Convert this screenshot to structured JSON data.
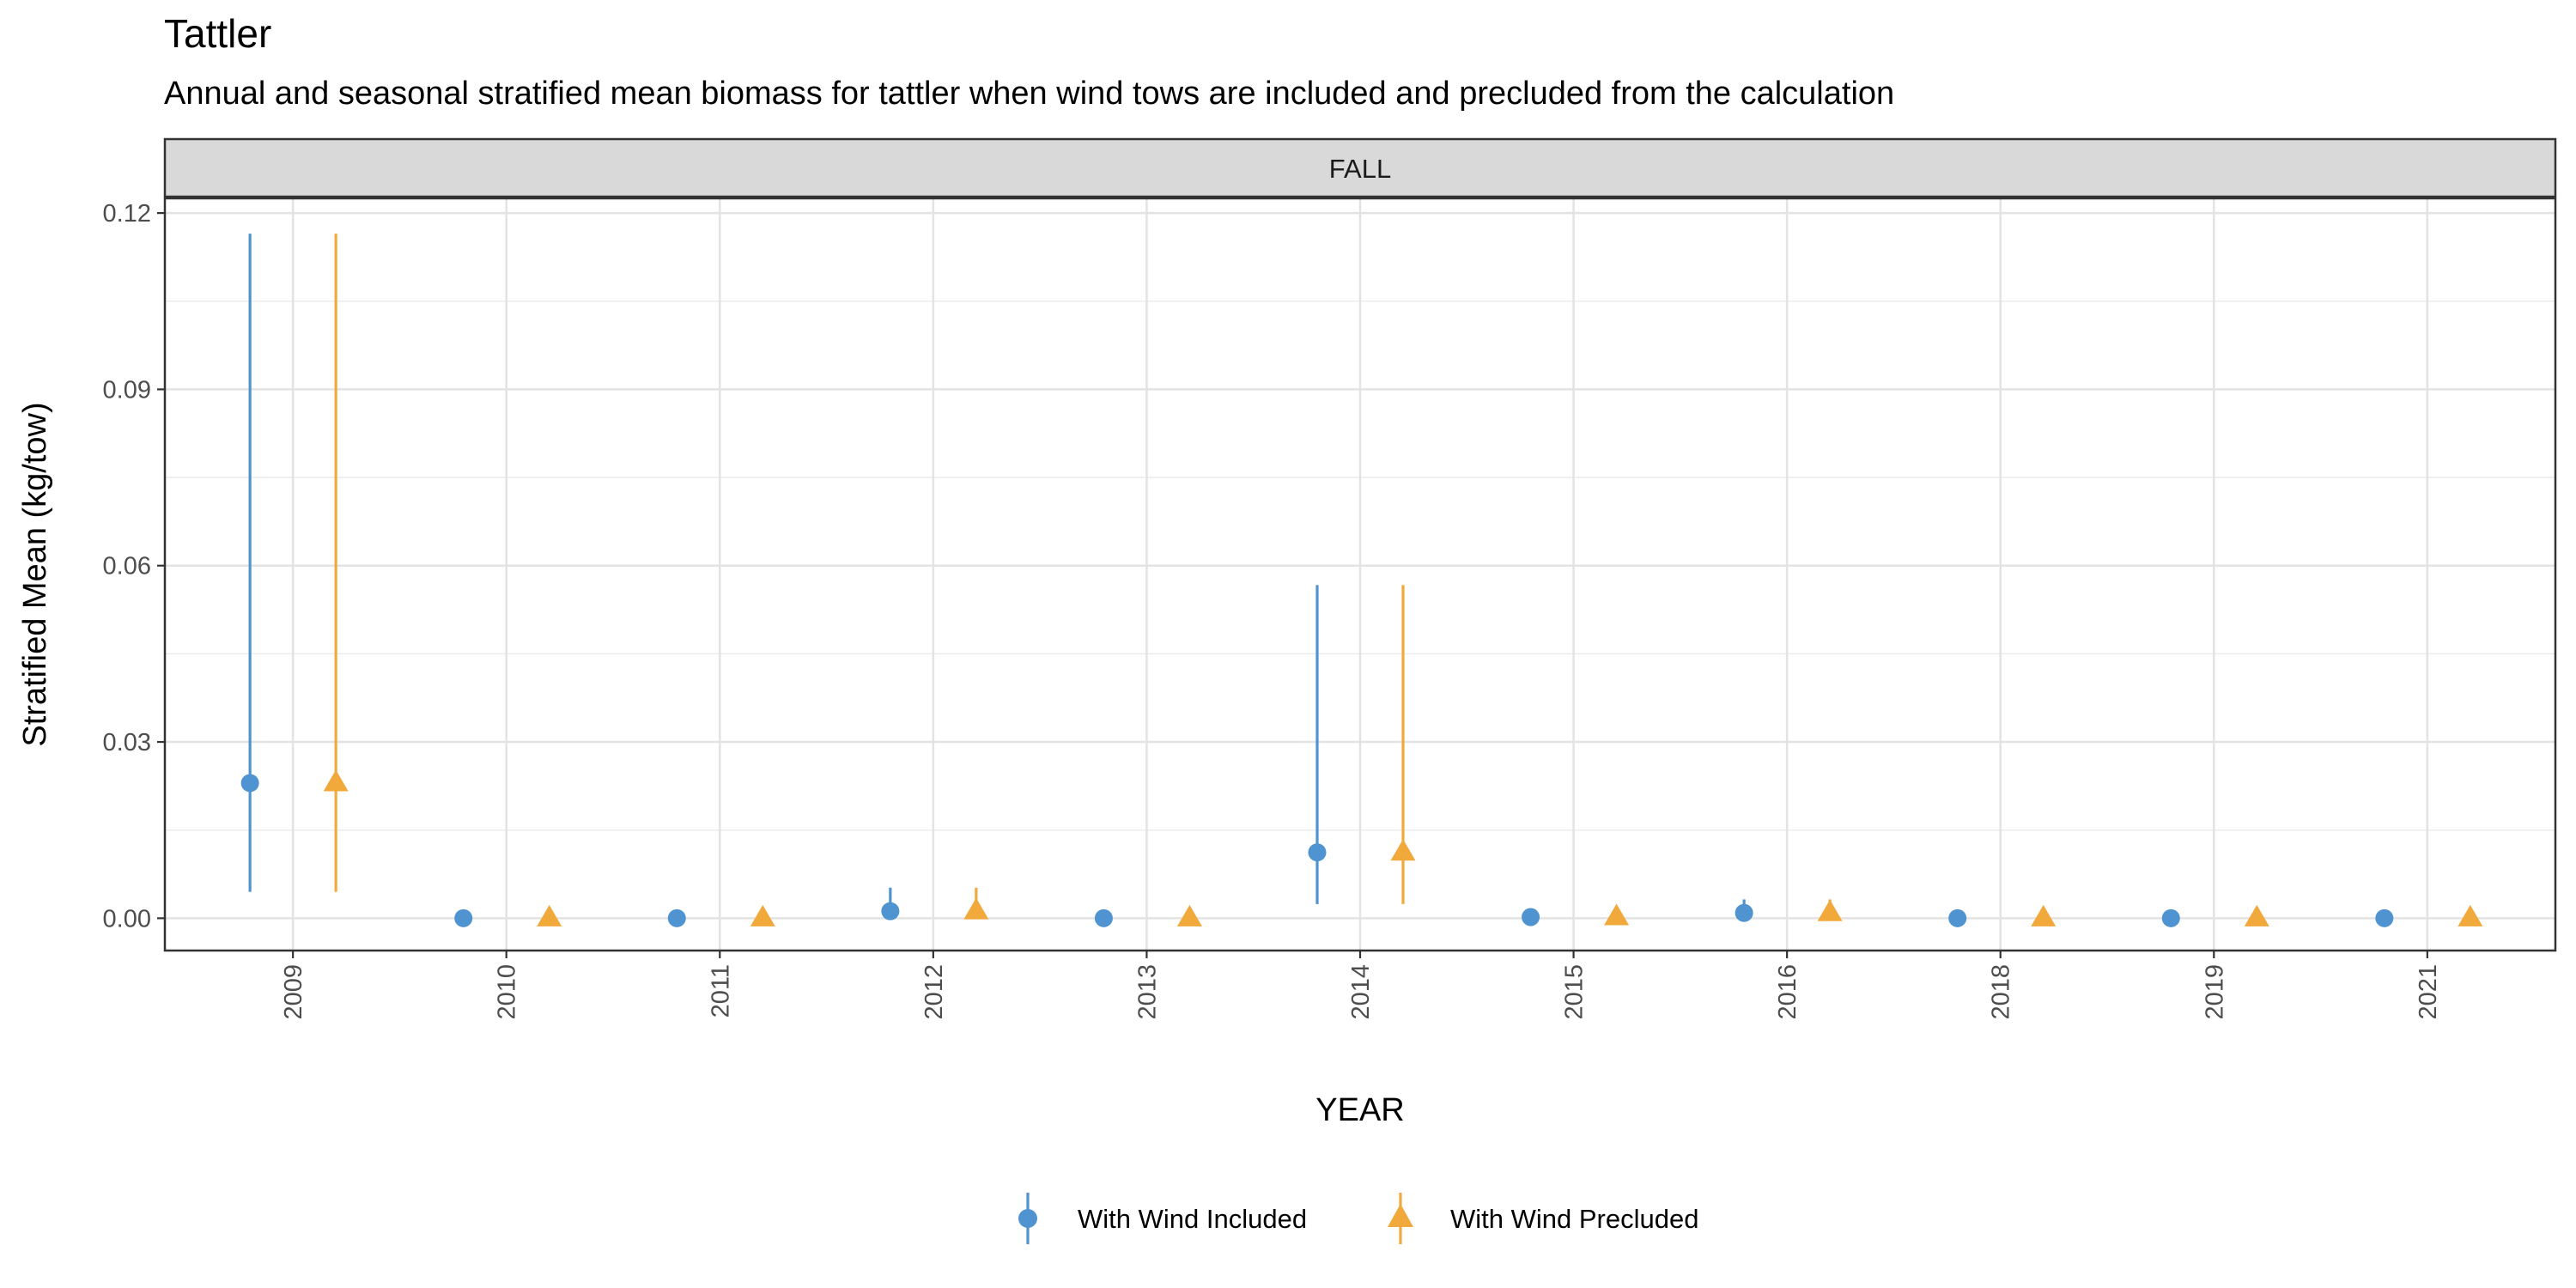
{
  "chart_data": {
    "type": "scatter",
    "title": "Tattler",
    "subtitle": "Annual and seasonal stratified mean biomass for tattler when wind tows are included and precluded from the calculation",
    "facet": "FALL",
    "xlabel": "YEAR",
    "ylabel": "Stratified Mean (kg/tow)",
    "categories": [
      "2009",
      "2010",
      "2011",
      "2012",
      "2013",
      "2014",
      "2015",
      "2016",
      "2018",
      "2019",
      "2021"
    ],
    "ylim": [
      -0.0055,
      0.1225
    ],
    "yticks": [
      "0.00",
      "0.03",
      "0.06",
      "0.09",
      "0.12"
    ],
    "grid": true,
    "legend_position": "bottom",
    "series": [
      {
        "name": "With Wind Included",
        "marker": "circle",
        "color": "#4f93d0",
        "values": [
          0.023,
          0.0,
          0.0,
          0.0012,
          0.0,
          0.0112,
          0.0002,
          0.0009,
          0.0,
          0.0,
          0.0
        ],
        "lower": [
          0.0045,
          0.0,
          0.0,
          0.0,
          0.0,
          0.0024,
          0.0,
          0.0,
          0.0,
          0.0,
          0.0
        ],
        "upper": [
          0.1165,
          0.0,
          0.0,
          0.0052,
          0.0,
          0.0567,
          0.0,
          0.0032,
          0.0,
          0.0,
          0.0
        ]
      },
      {
        "name": "With Wind Precluded",
        "marker": "triangle",
        "color": "#f2a93b",
        "values": [
          0.023,
          0.0,
          0.0,
          0.0012,
          0.0,
          0.0112,
          0.0002,
          0.0009,
          0.0,
          0.0,
          0.0
        ],
        "lower": [
          0.0045,
          0.0,
          0.0,
          0.0,
          0.0,
          0.0024,
          0.0,
          0.0,
          0.0,
          0.0,
          0.0
        ],
        "upper": [
          0.1165,
          0.0,
          0.0,
          0.0052,
          0.0,
          0.0567,
          0.0,
          0.0032,
          0.0,
          0.0,
          0.0
        ]
      }
    ]
  }
}
